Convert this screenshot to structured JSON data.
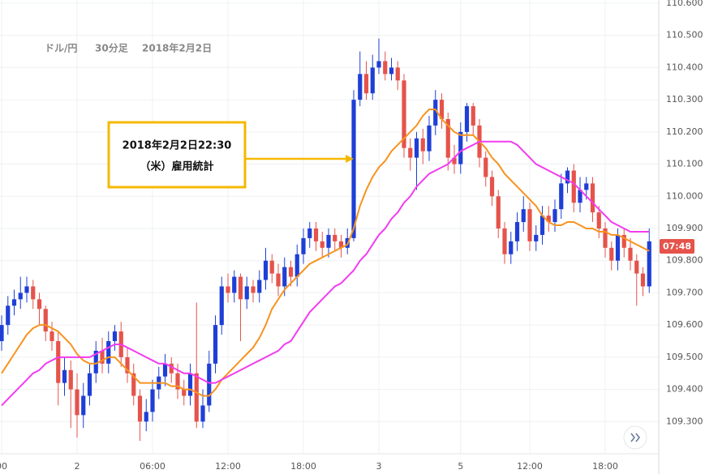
{
  "chart_data": {
    "type": "candlestick",
    "title": {
      "pair": "ドル/円",
      "timeframe": "30分足",
      "date": "2018年2月2日"
    },
    "categories": [
      "00",
      null,
      null,
      null,
      null,
      null,
      null,
      null,
      null,
      null,
      null,
      null,
      "2",
      null,
      null,
      null,
      null,
      null,
      null,
      null,
      null,
      null,
      null,
      null,
      "06:00",
      null,
      null,
      null,
      null,
      null,
      null,
      null,
      null,
      null,
      null,
      null,
      "12:00",
      null,
      null,
      null,
      null,
      null,
      null,
      null,
      null,
      null,
      null,
      null,
      "18:00",
      null,
      null,
      null,
      null,
      null,
      null,
      null,
      null,
      null,
      null,
      null,
      "3",
      null,
      null,
      null,
      null,
      null,
      null,
      null,
      null,
      null,
      null,
      null,
      null,
      "5",
      null,
      null,
      null,
      null,
      null,
      null,
      null,
      null,
      null,
      null,
      "12:00",
      null,
      null,
      null,
      null,
      null,
      null,
      null,
      null,
      null,
      null,
      null,
      "18:00",
      null,
      null,
      null,
      null,
      null,
      null,
      null
    ],
    "open": [
      109.55,
      109.6,
      109.66,
      109.68,
      109.7,
      109.72,
      109.68,
      109.65,
      109.58,
      109.55,
      109.42,
      109.46,
      109.4,
      109.32,
      109.38,
      109.45,
      109.52,
      109.48,
      109.55,
      109.58,
      109.5,
      109.45,
      109.38,
      109.3,
      109.33,
      109.4,
      109.44,
      109.48,
      109.45,
      109.4,
      109.38,
      109.45,
      109.3,
      109.35,
      109.48,
      109.6,
      109.72,
      109.7,
      109.75,
      109.68,
      109.72,
      109.7,
      109.74,
      109.8,
      109.76,
      109.72,
      109.78,
      109.75,
      109.82,
      109.87,
      109.9,
      109.86,
      109.84,
      109.88,
      109.86,
      109.84,
      109.87,
      110.3,
      110.38,
      110.32,
      110.4,
      110.42,
      110.38,
      110.4,
      110.36,
      110.15,
      110.12,
      110.18,
      110.14,
      110.22,
      110.3,
      110.24,
      110.12,
      110.1,
      110.2,
      110.28,
      110.22,
      110.12,
      110.06,
      110.0,
      109.9,
      109.82,
      109.86,
      109.92,
      109.96,
      109.86,
      109.88,
      109.94,
      109.92,
      109.96,
      110.04,
      110.08,
      109.98,
      110.02,
      110.04,
      109.95,
      109.9,
      109.84,
      109.8,
      109.88,
      109.84,
      109.8,
      109.76,
      109.72
    ],
    "high": [
      109.63,
      109.69,
      109.71,
      109.75,
      109.75,
      109.74,
      109.7,
      109.66,
      109.61,
      109.58,
      109.5,
      109.49,
      109.45,
      109.42,
      109.48,
      109.55,
      109.56,
      109.58,
      109.6,
      109.61,
      109.53,
      109.48,
      109.4,
      109.37,
      109.43,
      109.47,
      109.51,
      109.5,
      109.48,
      109.43,
      109.48,
      109.67,
      109.4,
      109.52,
      109.63,
      109.75,
      109.76,
      109.77,
      109.76,
      109.75,
      109.74,
      109.77,
      109.84,
      109.82,
      109.79,
      109.81,
      109.8,
      109.85,
      109.9,
      109.92,
      109.92,
      109.89,
      109.9,
      109.9,
      109.88,
      109.9,
      110.33,
      110.45,
      110.42,
      110.44,
      110.49,
      110.45,
      110.43,
      110.42,
      110.38,
      110.18,
      110.2,
      110.21,
      110.25,
      110.33,
      110.32,
      110.26,
      110.16,
      110.23,
      110.29,
      110.29,
      110.24,
      110.14,
      110.08,
      110.02,
      109.92,
      109.89,
      109.95,
      110.0,
      109.98,
      109.91,
      109.97,
      109.97,
      109.99,
      110.07,
      110.09,
      110.1,
      110.06,
      110.06,
      110.06,
      109.97,
      109.92,
      109.86,
      109.9,
      109.9,
      109.87,
      109.82,
      109.78,
      109.9
    ],
    "low": [
      109.52,
      109.57,
      109.63,
      109.65,
      109.67,
      109.65,
      109.6,
      109.55,
      109.52,
      109.35,
      109.38,
      109.28,
      109.25,
      109.28,
      109.35,
      109.42,
      109.45,
      109.45,
      109.52,
      109.47,
      109.42,
      109.35,
      109.24,
      109.27,
      109.3,
      109.37,
      109.41,
      109.42,
      109.37,
      109.35,
      109.35,
      109.28,
      109.28,
      109.33,
      109.45,
      109.57,
      109.67,
      109.67,
      109.55,
      109.65,
      109.67,
      109.67,
      109.71,
      109.73,
      109.69,
      109.69,
      109.72,
      109.72,
      109.79,
      109.84,
      109.83,
      109.81,
      109.81,
      109.83,
      109.81,
      109.82,
      109.86,
      110.28,
      110.3,
      110.3,
      110.38,
      110.36,
      110.36,
      110.33,
      110.12,
      110.08,
      110.02,
      110.1,
      110.11,
      110.19,
      110.21,
      110.08,
      110.07,
      110.07,
      110.17,
      110.19,
      110.09,
      110.03,
      109.97,
      109.87,
      109.79,
      109.79,
      109.83,
      109.89,
      109.83,
      109.83,
      109.85,
      109.89,
      109.89,
      109.93,
      110.01,
      109.95,
      109.95,
      109.99,
      109.92,
      109.87,
      109.81,
      109.77,
      109.77,
      109.81,
      109.77,
      109.66,
      109.69,
      109.7
    ],
    "close": [
      109.6,
      109.66,
      109.68,
      109.7,
      109.72,
      109.68,
      109.65,
      109.58,
      109.55,
      109.42,
      109.46,
      109.4,
      109.32,
      109.38,
      109.45,
      109.52,
      109.48,
      109.55,
      109.58,
      109.5,
      109.45,
      109.38,
      109.3,
      109.33,
      109.4,
      109.44,
      109.48,
      109.45,
      109.4,
      109.38,
      109.45,
      109.3,
      109.35,
      109.48,
      109.6,
      109.72,
      109.7,
      109.75,
      109.68,
      109.72,
      109.7,
      109.74,
      109.8,
      109.76,
      109.72,
      109.78,
      109.75,
      109.82,
      109.87,
      109.9,
      109.86,
      109.84,
      109.88,
      109.86,
      109.84,
      109.87,
      110.3,
      110.38,
      110.32,
      110.4,
      110.42,
      110.38,
      110.4,
      110.36,
      110.15,
      110.12,
      110.18,
      110.14,
      110.22,
      110.3,
      110.24,
      110.12,
      110.1,
      110.2,
      110.28,
      110.22,
      110.12,
      110.06,
      110.0,
      109.9,
      109.82,
      109.86,
      109.92,
      109.96,
      109.86,
      109.88,
      109.94,
      109.92,
      109.96,
      110.04,
      110.08,
      109.98,
      110.02,
      110.04,
      109.95,
      109.9,
      109.84,
      109.8,
      109.88,
      109.84,
      109.8,
      109.76,
      109.72,
      109.86
    ],
    "up_color": "#1e3fd6",
    "down_color": "#e5534b",
    "series": [
      {
        "color": "#f7931e",
        "values": [
          109.45,
          109.48,
          109.51,
          109.54,
          109.57,
          109.59,
          109.6,
          109.6,
          109.59,
          109.58,
          109.56,
          109.54,
          109.51,
          109.49,
          109.48,
          109.48,
          109.49,
          109.5,
          109.5,
          109.48,
          109.46,
          109.44,
          109.42,
          109.42,
          109.42,
          109.42,
          109.42,
          109.41,
          109.41,
          109.4,
          109.4,
          109.39,
          109.38,
          109.38,
          109.4,
          109.43,
          109.45,
          109.47,
          109.49,
          109.51,
          109.53,
          109.56,
          109.6,
          109.65,
          109.68,
          109.71,
          109.73,
          109.75,
          109.77,
          109.79,
          109.8,
          109.81,
          109.82,
          109.83,
          109.84,
          109.85,
          109.9,
          109.97,
          110.02,
          110.06,
          110.09,
          110.11,
          110.14,
          110.16,
          110.18,
          110.2,
          110.22,
          110.25,
          110.27,
          110.27,
          110.24,
          110.22,
          110.2,
          110.19,
          110.19,
          110.19,
          110.17,
          110.15,
          110.12,
          110.1,
          110.07,
          110.05,
          110.03,
          110.01,
          109.99,
          109.97,
          109.94,
          109.92,
          109.91,
          109.91,
          109.92,
          109.92,
          109.91,
          109.9,
          109.9,
          109.89,
          109.89,
          109.88,
          109.88,
          109.87,
          109.86,
          109.85,
          109.84,
          109.83
        ]
      },
      {
        "color": "#f23bf0",
        "values": [
          109.35,
          109.37,
          109.39,
          109.41,
          109.43,
          109.45,
          109.46,
          109.48,
          109.49,
          109.5,
          109.5,
          109.5,
          109.5,
          109.5,
          109.5,
          109.51,
          109.52,
          109.53,
          109.54,
          109.54,
          109.53,
          109.52,
          109.51,
          109.5,
          109.49,
          109.48,
          109.48,
          109.47,
          109.46,
          109.45,
          109.45,
          109.44,
          109.43,
          109.42,
          109.42,
          109.43,
          109.44,
          109.45,
          109.46,
          109.47,
          109.48,
          109.49,
          109.5,
          109.51,
          109.52,
          109.54,
          109.55,
          109.58,
          109.61,
          109.64,
          109.66,
          109.68,
          109.7,
          109.72,
          109.73,
          109.75,
          109.77,
          109.8,
          109.82,
          109.85,
          109.88,
          109.9,
          109.93,
          109.95,
          109.98,
          110.0,
          110.03,
          110.05,
          110.07,
          110.08,
          110.09,
          110.1,
          110.12,
          110.14,
          110.15,
          110.16,
          110.17,
          110.17,
          110.17,
          110.17,
          110.17,
          110.17,
          110.16,
          110.14,
          110.12,
          110.1,
          110.09,
          110.08,
          110.07,
          110.06,
          110.05,
          110.04,
          110.02,
          110.0,
          109.98,
          109.96,
          109.94,
          109.92,
          109.91,
          109.9,
          109.89,
          109.89,
          109.89,
          109.89
        ]
      }
    ],
    "annotation": {
      "time": "2018年2月2日22:30",
      "event": "（米）雇用統計"
    },
    "price_label": "07:48",
    "ylim": [
      109.2,
      110.61
    ],
    "yticks": [
      {
        "value": 109.3,
        "label": "109.300"
      },
      {
        "value": 109.4,
        "label": "109.400"
      },
      {
        "value": 109.5,
        "label": "109.500"
      },
      {
        "value": 109.6,
        "label": "109.600"
      },
      {
        "value": 109.7,
        "label": "109.700"
      },
      {
        "value": 109.8,
        "label": "109.800"
      },
      {
        "value": 109.9,
        "label": "109.900"
      },
      {
        "value": 110.0,
        "label": "110.000"
      },
      {
        "value": 110.1,
        "label": "110.100"
      },
      {
        "value": 110.2,
        "label": "110.200"
      },
      {
        "value": 110.3,
        "label": "110.300"
      },
      {
        "value": 110.4,
        "label": "110.400"
      },
      {
        "value": 110.5,
        "label": "110.500"
      },
      {
        "value": 110.6,
        "label": "110.600"
      }
    ],
    "grid": true
  }
}
